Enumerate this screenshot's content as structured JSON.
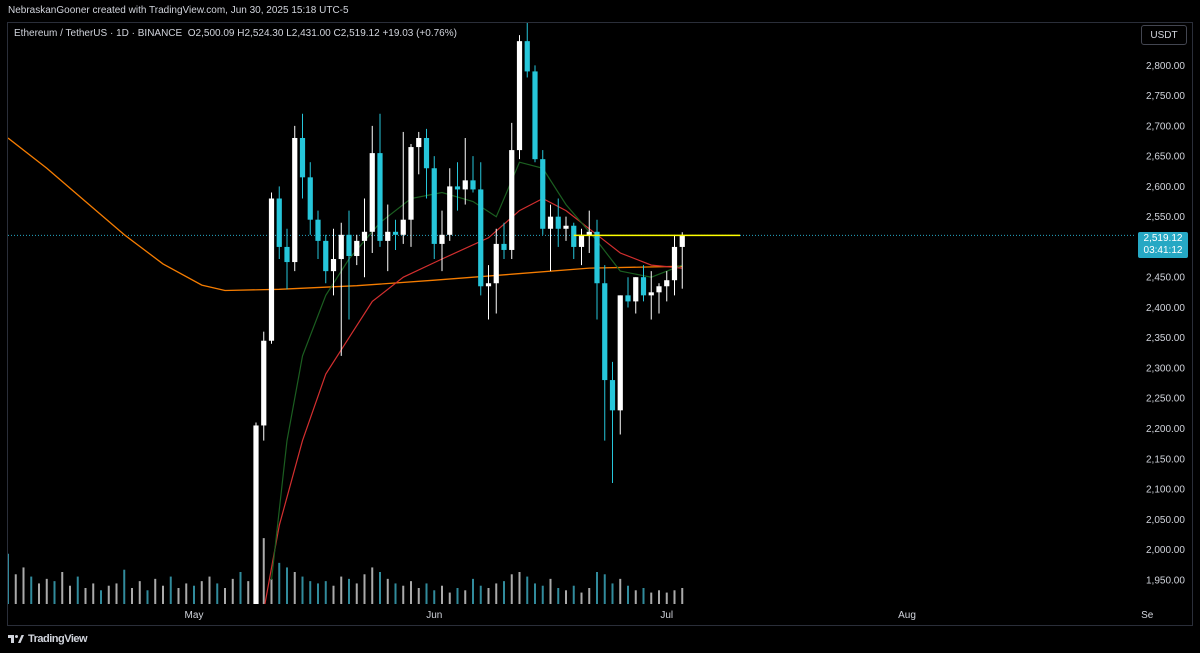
{
  "header": {
    "attribution": "NebraskanGooner created with TradingView.com, Jun 30, 2025 15:18 UTC-5"
  },
  "legend": {
    "symbol": "Ethereum / TetherUS · 1D · BINANCE",
    "open_label": "O",
    "open": "2,500.09",
    "high_label": "H",
    "high": "2,524.30",
    "low_label": "L",
    "low": "2,431.00",
    "close_label": "C",
    "close": "2,519.12",
    "change": "+19.03 (+0.76%)"
  },
  "currency_button": "USDT",
  "last_price": {
    "price": "2,519.12",
    "countdown": "03:41:12"
  },
  "footer": {
    "brand": "TradingView",
    "logo_icon": "tradingview-logo-icon"
  },
  "colors": {
    "background": "#000000",
    "up_candle": "#ffffff",
    "down_candle": "#26c6da",
    "ma_orange": "#f57c00",
    "ma_red": "#d32f2f",
    "ma_green": "#1b5e20",
    "resistance_line": "#ffff00",
    "last_price_line": "#26a8c4",
    "axis_text": "#d1d4dc"
  },
  "chart_data": {
    "type": "candlestick",
    "title": "",
    "y_axis": {
      "side": "right",
      "ylim": [
        1910,
        2870
      ],
      "ticks": [
        "1,950.00",
        "2,000.00",
        "2,050.00",
        "2,100.00",
        "2,150.00",
        "2,200.00",
        "2,250.00",
        "2,300.00",
        "2,350.00",
        "2,400.00",
        "2,450.00",
        "2,500.00",
        "2,550.00",
        "2,600.00",
        "2,650.00",
        "2,700.00",
        "2,750.00",
        "2,800.00"
      ]
    },
    "x_axis": {
      "labels": [
        {
          "label": "May",
          "day": 24
        },
        {
          "label": "Jun",
          "day": 55
        },
        {
          "label": "Jul",
          "day": 85
        },
        {
          "label": "Aug",
          "day": 116
        },
        {
          "label": "Se",
          "day": 147
        }
      ]
    },
    "grid": false,
    "resistance_level": 2519,
    "candles": [
      {
        "d": 32,
        "o": 1815,
        "h": 2210,
        "l": 1810,
        "c": 2205
      },
      {
        "d": 33,
        "o": 2205,
        "h": 2360,
        "l": 2180,
        "c": 2345
      },
      {
        "d": 34,
        "o": 2345,
        "h": 2590,
        "l": 2340,
        "c": 2580
      },
      {
        "d": 35,
        "o": 2580,
        "h": 2600,
        "l": 2480,
        "c": 2500
      },
      {
        "d": 36,
        "o": 2500,
        "h": 2530,
        "l": 2430,
        "c": 2475
      },
      {
        "d": 37,
        "o": 2475,
        "h": 2700,
        "l": 2460,
        "c": 2680
      },
      {
        "d": 38,
        "o": 2680,
        "h": 2720,
        "l": 2580,
        "c": 2615
      },
      {
        "d": 39,
        "o": 2615,
        "h": 2640,
        "l": 2520,
        "c": 2545
      },
      {
        "d": 40,
        "o": 2545,
        "h": 2560,
        "l": 2480,
        "c": 2510
      },
      {
        "d": 41,
        "o": 2510,
        "h": 2520,
        "l": 2440,
        "c": 2460
      },
      {
        "d": 42,
        "o": 2460,
        "h": 2530,
        "l": 2420,
        "c": 2480
      },
      {
        "d": 43,
        "o": 2480,
        "h": 2540,
        "l": 2320,
        "c": 2520
      },
      {
        "d": 44,
        "o": 2520,
        "h": 2560,
        "l": 2380,
        "c": 2485
      },
      {
        "d": 45,
        "o": 2485,
        "h": 2520,
        "l": 2470,
        "c": 2510
      },
      {
        "d": 46,
        "o": 2510,
        "h": 2580,
        "l": 2450,
        "c": 2525
      },
      {
        "d": 47,
        "o": 2525,
        "h": 2700,
        "l": 2490,
        "c": 2655
      },
      {
        "d": 48,
        "o": 2655,
        "h": 2720,
        "l": 2500,
        "c": 2510
      },
      {
        "d": 49,
        "o": 2510,
        "h": 2570,
        "l": 2460,
        "c": 2525
      },
      {
        "d": 50,
        "o": 2525,
        "h": 2545,
        "l": 2495,
        "c": 2520
      },
      {
        "d": 51,
        "o": 2520,
        "h": 2690,
        "l": 2505,
        "c": 2545
      },
      {
        "d": 52,
        "o": 2545,
        "h": 2670,
        "l": 2500,
        "c": 2665
      },
      {
        "d": 53,
        "o": 2665,
        "h": 2690,
        "l": 2620,
        "c": 2680
      },
      {
        "d": 54,
        "o": 2680,
        "h": 2695,
        "l": 2580,
        "c": 2630
      },
      {
        "d": 55,
        "o": 2630,
        "h": 2650,
        "l": 2480,
        "c": 2505
      },
      {
        "d": 56,
        "o": 2505,
        "h": 2560,
        "l": 2460,
        "c": 2520
      },
      {
        "d": 57,
        "o": 2520,
        "h": 2630,
        "l": 2510,
        "c": 2600
      },
      {
        "d": 58,
        "o": 2600,
        "h": 2640,
        "l": 2560,
        "c": 2595
      },
      {
        "d": 59,
        "o": 2595,
        "h": 2680,
        "l": 2570,
        "c": 2610
      },
      {
        "d": 60,
        "o": 2610,
        "h": 2650,
        "l": 2590,
        "c": 2595
      },
      {
        "d": 61,
        "o": 2595,
        "h": 2640,
        "l": 2420,
        "c": 2435
      },
      {
        "d": 62,
        "o": 2435,
        "h": 2470,
        "l": 2380,
        "c": 2440
      },
      {
        "d": 63,
        "o": 2440,
        "h": 2530,
        "l": 2390,
        "c": 2505
      },
      {
        "d": 64,
        "o": 2505,
        "h": 2540,
        "l": 2480,
        "c": 2495
      },
      {
        "d": 65,
        "o": 2495,
        "h": 2705,
        "l": 2480,
        "c": 2660
      },
      {
        "d": 66,
        "o": 2660,
        "h": 2850,
        "l": 2645,
        "c": 2840
      },
      {
        "d": 67,
        "o": 2840,
        "h": 2880,
        "l": 2780,
        "c": 2790
      },
      {
        "d": 68,
        "o": 2790,
        "h": 2800,
        "l": 2640,
        "c": 2645
      },
      {
        "d": 69,
        "o": 2645,
        "h": 2660,
        "l": 2520,
        "c": 2530
      },
      {
        "d": 70,
        "o": 2530,
        "h": 2570,
        "l": 2460,
        "c": 2550
      },
      {
        "d": 71,
        "o": 2550,
        "h": 2580,
        "l": 2500,
        "c": 2530
      },
      {
        "d": 72,
        "o": 2530,
        "h": 2550,
        "l": 2510,
        "c": 2535
      },
      {
        "d": 73,
        "o": 2535,
        "h": 2540,
        "l": 2480,
        "c": 2500
      },
      {
        "d": 74,
        "o": 2500,
        "h": 2530,
        "l": 2470,
        "c": 2520
      },
      {
        "d": 75,
        "o": 2520,
        "h": 2560,
        "l": 2490,
        "c": 2525
      },
      {
        "d": 76,
        "o": 2525,
        "h": 2545,
        "l": 2380,
        "c": 2440
      },
      {
        "d": 77,
        "o": 2440,
        "h": 2470,
        "l": 2180,
        "c": 2280
      },
      {
        "d": 78,
        "o": 2280,
        "h": 2310,
        "l": 2110,
        "c": 2230
      },
      {
        "d": 79,
        "o": 2230,
        "h": 2420,
        "l": 2190,
        "c": 2420
      },
      {
        "d": 80,
        "o": 2420,
        "h": 2450,
        "l": 2400,
        "c": 2410
      },
      {
        "d": 81,
        "o": 2410,
        "h": 2450,
        "l": 2390,
        "c": 2450
      },
      {
        "d": 82,
        "o": 2450,
        "h": 2470,
        "l": 2410,
        "c": 2420
      },
      {
        "d": 83,
        "o": 2420,
        "h": 2460,
        "l": 2380,
        "c": 2425
      },
      {
        "d": 84,
        "o": 2425,
        "h": 2440,
        "l": 2390,
        "c": 2435
      },
      {
        "d": 85,
        "o": 2435,
        "h": 2460,
        "l": 2410,
        "c": 2445
      },
      {
        "d": 86,
        "o": 2445,
        "h": 2520,
        "l": 2420,
        "c": 2500
      },
      {
        "d": 87,
        "o": 2500,
        "h": 2524.3,
        "l": 2431,
        "c": 2519.12
      }
    ],
    "volume": [
      22,
      13,
      16,
      12,
      9,
      11,
      10,
      14,
      8,
      12,
      7,
      9,
      6,
      8,
      9,
      15,
      7,
      10,
      6,
      11,
      8,
      12,
      7,
      9,
      8,
      10,
      12,
      9,
      7,
      11,
      14,
      10,
      13,
      9,
      11,
      18,
      16,
      14,
      12,
      10,
      9,
      10,
      8,
      12,
      11,
      9,
      13,
      16,
      14,
      11,
      9,
      8,
      10,
      7,
      9,
      6,
      8,
      5,
      7,
      6,
      11,
      8,
      7,
      9,
      10,
      13,
      14,
      12,
      9,
      8,
      11,
      7,
      6,
      8,
      5,
      7,
      14,
      13,
      9,
      11,
      8,
      6,
      7,
      5,
      6,
      5,
      6,
      7
    ],
    "ma_slow_orange": [
      {
        "d": 0,
        "v": 2680
      },
      {
        "d": 5,
        "v": 2630
      },
      {
        "d": 10,
        "v": 2575
      },
      {
        "d": 15,
        "v": 2520
      },
      {
        "d": 20,
        "v": 2472
      },
      {
        "d": 25,
        "v": 2437
      },
      {
        "d": 28,
        "v": 2428
      },
      {
        "d": 35,
        "v": 2430
      },
      {
        "d": 45,
        "v": 2436
      },
      {
        "d": 55,
        "v": 2445
      },
      {
        "d": 65,
        "v": 2455
      },
      {
        "d": 75,
        "v": 2465
      },
      {
        "d": 87,
        "v": 2468
      }
    ],
    "ma_mid_red": [
      {
        "d": 33,
        "v": 1900
      },
      {
        "d": 35,
        "v": 2040
      },
      {
        "d": 38,
        "v": 2180
      },
      {
        "d": 41,
        "v": 2290
      },
      {
        "d": 44,
        "v": 2350
      },
      {
        "d": 47,
        "v": 2410
      },
      {
        "d": 51,
        "v": 2450
      },
      {
        "d": 56,
        "v": 2480
      },
      {
        "d": 62,
        "v": 2515
      },
      {
        "d": 66,
        "v": 2560
      },
      {
        "d": 69,
        "v": 2580
      },
      {
        "d": 72,
        "v": 2560
      },
      {
        "d": 76,
        "v": 2520
      },
      {
        "d": 79,
        "v": 2490
      },
      {
        "d": 83,
        "v": 2470
      },
      {
        "d": 87,
        "v": 2465
      }
    ],
    "ma_fast_green": [
      {
        "d": 34,
        "v": 1950
      },
      {
        "d": 36,
        "v": 2180
      },
      {
        "d": 38,
        "v": 2320
      },
      {
        "d": 41,
        "v": 2420
      },
      {
        "d": 44,
        "v": 2480
      },
      {
        "d": 48,
        "v": 2540
      },
      {
        "d": 52,
        "v": 2580
      },
      {
        "d": 56,
        "v": 2590
      },
      {
        "d": 60,
        "v": 2575
      },
      {
        "d": 63,
        "v": 2550
      },
      {
        "d": 66,
        "v": 2640
      },
      {
        "d": 69,
        "v": 2630
      },
      {
        "d": 72,
        "v": 2570
      },
      {
        "d": 76,
        "v": 2510
      },
      {
        "d": 79,
        "v": 2460
      },
      {
        "d": 83,
        "v": 2450
      },
      {
        "d": 87,
        "v": 2470
      }
    ]
  }
}
